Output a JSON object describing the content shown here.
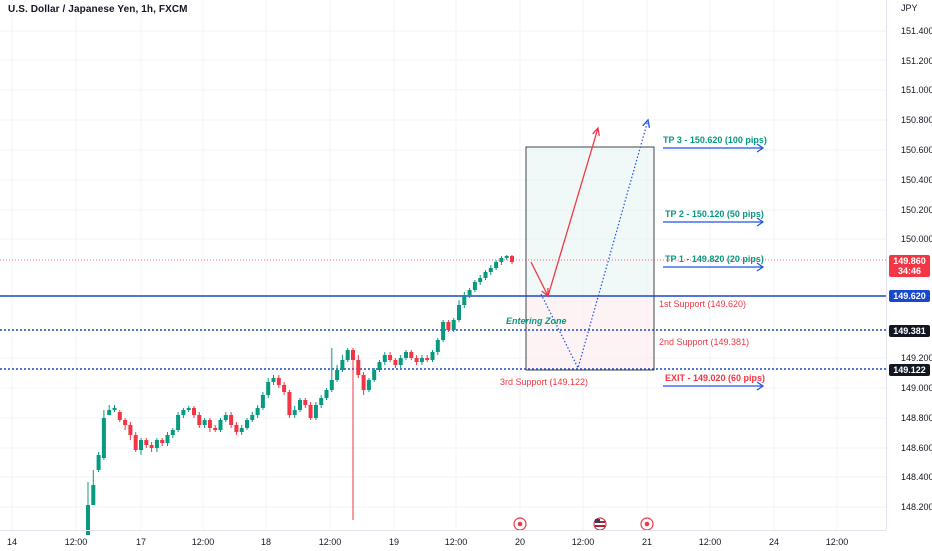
{
  "title": "U.S. Dollar / Japanese Yen, 1h, FXCM",
  "currency": "JPY",
  "price_ticks": [
    "151.400",
    "151.200",
    "151.000",
    "150.800",
    "150.600",
    "150.400",
    "150.200",
    "150.000",
    "149.200",
    "149.000",
    "148.800",
    "148.600",
    "148.400",
    "148.200"
  ],
  "time_ticks": [
    "14",
    "12:00",
    "17",
    "12:00",
    "18",
    "12:00",
    "19",
    "12:00",
    "20",
    "12:00",
    "21",
    "12:00",
    "24",
    "12:00"
  ],
  "badges": {
    "last_price": "149.860",
    "countdown": "34:46",
    "support1": "149.620",
    "support2": "149.381",
    "support3": "149.122"
  },
  "annotations": {
    "tp3": "TP 3 - 150.620 (100 pips)",
    "tp2": "TP 2 - 150.120 (50 pips)",
    "tp1": "TP 1 - 149.820 (20 pips)",
    "support1": "1st Support (149.620)",
    "entering_zone": "Entering Zone",
    "support2": "2nd Support (149.381)",
    "support3": "3rd Support (149.122)",
    "exit": "EXIT - 149.020 (60 pips)"
  },
  "colors": {
    "up": "#089981",
    "down": "#f23645",
    "support_line": "#1848cc",
    "tp_text": "#089981",
    "exit_text": "#f23645",
    "arrow_blue": "#1e53e5"
  },
  "icons": [
    "event-icon",
    "us-flag-icon",
    "event-icon"
  ]
}
